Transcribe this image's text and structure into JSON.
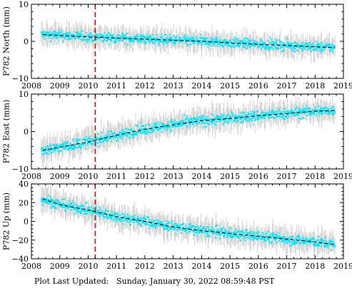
{
  "footer": {
    "label": "Plot Last Updated:",
    "value": "Sunday, January 30, 2022 08:59:48 PST"
  },
  "chart_data": [
    {
      "type": "scatter",
      "ylabel": "P782 North (mm)",
      "xlim": [
        2008,
        2019
      ],
      "ylim": [
        -10,
        10
      ],
      "yticks": [
        -10,
        0,
        10
      ],
      "xticks": [
        2008,
        2009,
        2010,
        2011,
        2012,
        2013,
        2014,
        2015,
        2016,
        2017,
        2018,
        2019
      ],
      "event_line_x": 2010.25,
      "trend": {
        "x": [
          2008.4,
          2009.0,
          2010.0,
          2011.0,
          2012.0,
          2013.0,
          2014.0,
          2015.0,
          2016.0,
          2017.0,
          2018.0,
          2018.7
        ],
        "y": [
          1.8,
          1.6,
          1.2,
          0.9,
          0.6,
          0.3,
          0.0,
          -0.4,
          -0.8,
          -1.1,
          -1.5,
          -1.7
        ]
      },
      "data_range": [
        2008.35,
        2018.7
      ],
      "spread": 1.3,
      "colors": {
        "points": "#00e5ff",
        "errorbars": "#b8b8b8",
        "trend": "#000000",
        "event": "#dd0000"
      }
    },
    {
      "type": "scatter",
      "ylabel": "P782 East (mm)",
      "xlim": [
        2008,
        2019
      ],
      "ylim": [
        -10,
        10
      ],
      "yticks": [
        -10,
        0,
        10
      ],
      "xticks": [
        2008,
        2009,
        2010,
        2011,
        2012,
        2013,
        2014,
        2015,
        2016,
        2017,
        2018,
        2019
      ],
      "event_line_x": 2010.25,
      "trend": {
        "x": [
          2008.4,
          2009.0,
          2010.0,
          2011.0,
          2012.0,
          2013.0,
          2014.0,
          2015.0,
          2016.0,
          2017.0,
          2018.0,
          2018.7
        ],
        "y": [
          -5.0,
          -4.2,
          -2.8,
          -1.0,
          0.6,
          1.8,
          2.9,
          3.5,
          4.2,
          4.8,
          5.4,
          5.6
        ]
      },
      "data_range": [
        2008.35,
        2018.7
      ],
      "spread": 1.4,
      "colors": {
        "points": "#00e5ff",
        "errorbars": "#b8b8b8",
        "trend": "#000000",
        "event": "#dd0000"
      }
    },
    {
      "type": "scatter",
      "ylabel": "P782 Up (mm)",
      "xlim": [
        2008,
        2019
      ],
      "ylim": [
        -40,
        40
      ],
      "yticks": [
        -40,
        -20,
        0,
        20,
        40
      ],
      "xticks": [
        2008,
        2009,
        2010,
        2011,
        2012,
        2013,
        2014,
        2015,
        2016,
        2017,
        2018,
        2019
      ],
      "event_line_x": 2010.25,
      "trend": {
        "x": [
          2008.4,
          2009.0,
          2010.0,
          2011.0,
          2012.0,
          2013.0,
          2014.0,
          2015.0,
          2016.0,
          2017.0,
          2018.0,
          2018.7
        ],
        "y": [
          24.0,
          18.0,
          12.0,
          5.0,
          0.0,
          -6.0,
          -10.0,
          -13.0,
          -16.0,
          -19.0,
          -22.0,
          -25.0
        ]
      },
      "data_range": [
        2008.35,
        2018.7
      ],
      "spread": 5.5,
      "colors": {
        "points": "#00e5ff",
        "errorbars": "#b8b8b8",
        "trend": "#000000",
        "event": "#dd0000"
      }
    }
  ]
}
